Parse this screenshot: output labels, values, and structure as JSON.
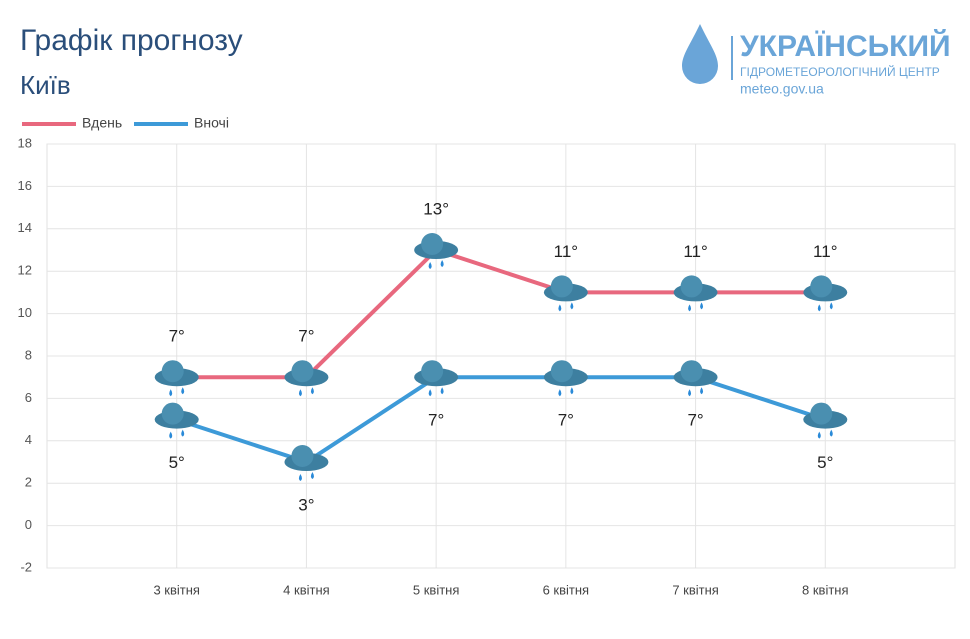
{
  "chart_data": {
    "type": "line",
    "title": "Графік прогнозу",
    "subtitle": "Київ",
    "logo": {
      "name": "УКРАЇНСЬКИЙ",
      "subname": "ГІДРОМЕТЕОРОЛОГІЧНИЙ ЦЕНТР",
      "site": "meteo.gov.ua"
    },
    "categories": [
      "3 квітня",
      "4 квітня",
      "5 квітня",
      "6 квітня",
      "7 квітня",
      "8 квітня"
    ],
    "series": [
      {
        "name": "Вдень",
        "color": "#e8687e",
        "values": [
          7,
          7,
          13,
          11,
          11,
          11
        ],
        "value_labels": [
          "7°",
          "7°",
          "13°",
          "11°",
          "11°",
          "11°"
        ]
      },
      {
        "name": "Вночі",
        "color": "#3d9ad8",
        "values": [
          5,
          3,
          7,
          7,
          7,
          5
        ],
        "value_labels": [
          "5°",
          "3°",
          "7°",
          "7°",
          "7°",
          "5°"
        ]
      }
    ],
    "ylim": [
      -2,
      18
    ],
    "yticks": [
      -2,
      0,
      2,
      4,
      6,
      8,
      10,
      12,
      14,
      16,
      18
    ],
    "grid": true,
    "legend": "top-left"
  }
}
